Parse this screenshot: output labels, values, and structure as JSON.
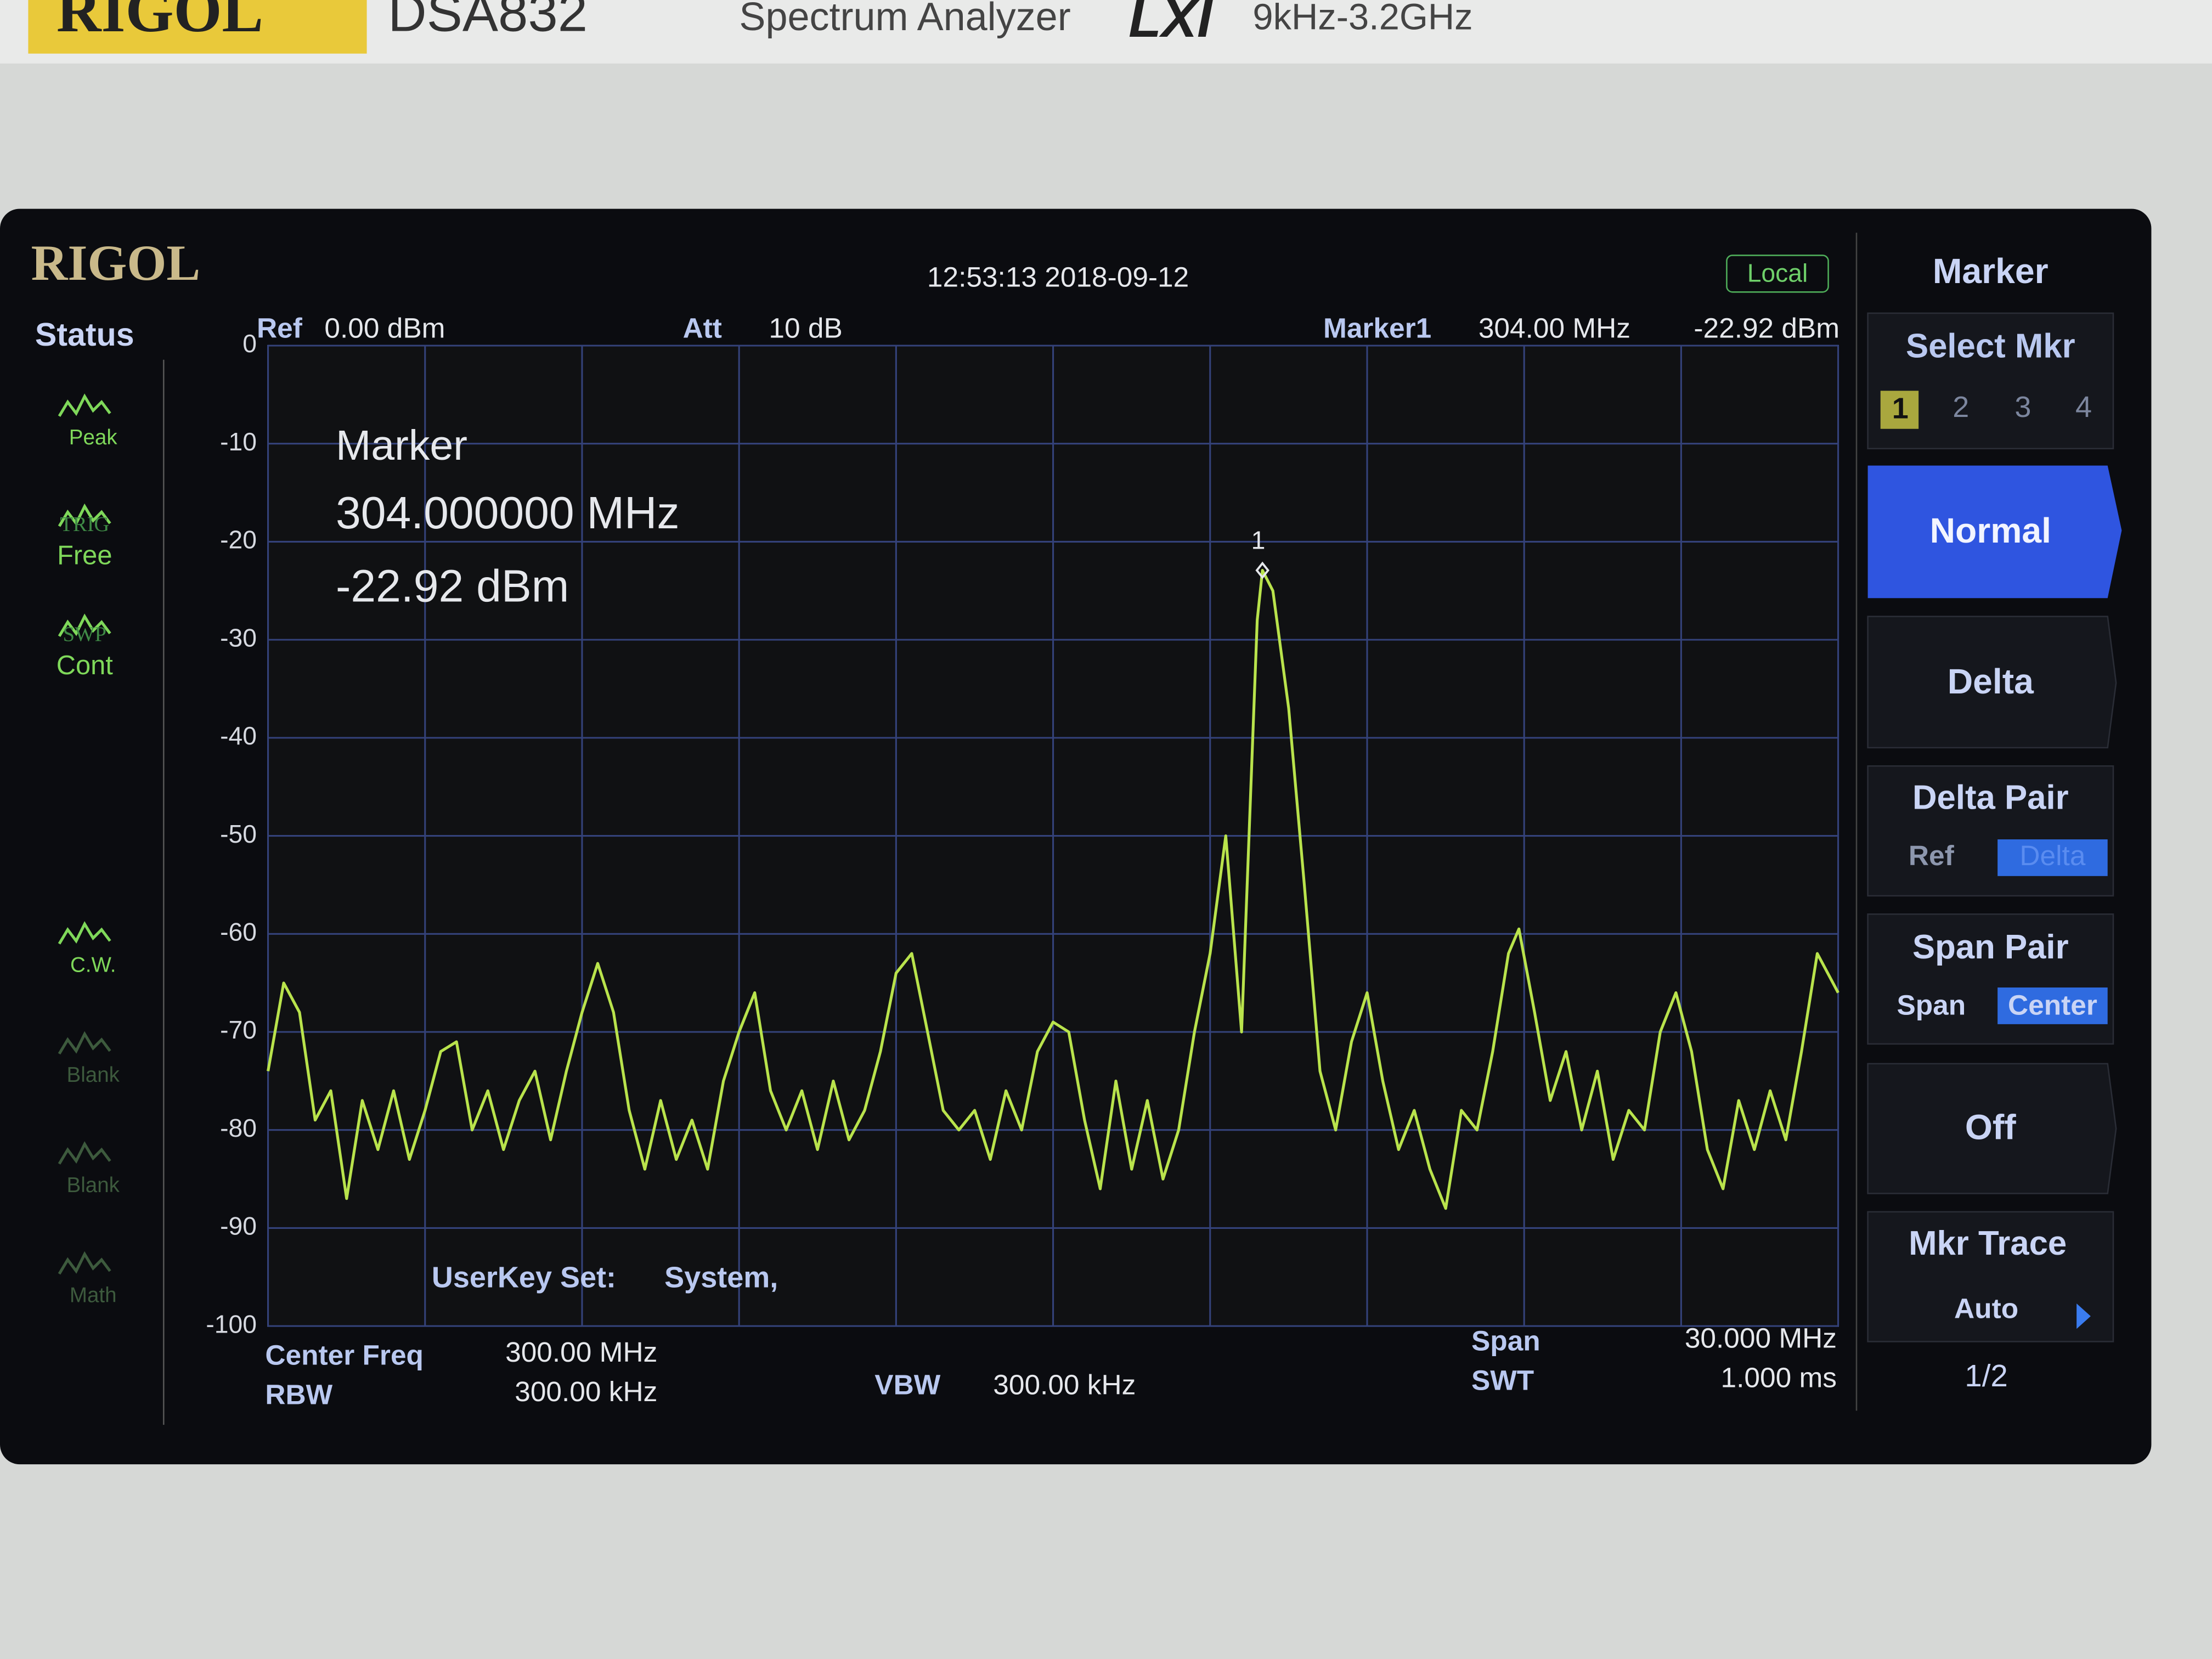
{
  "device": {
    "brand": "RIGOL",
    "model": "DSA832",
    "desc": "Spectrum Analyzer",
    "lxi": "LXI",
    "range": "9kHz-3.2GHz"
  },
  "screen": {
    "logo": "RIGOL",
    "time": "12:53:13 2018-09-12",
    "mode": "Local",
    "status": {
      "title": "Status",
      "items": [
        {
          "bottom": "Peak"
        },
        {
          "top": "TRIG",
          "bottom": "Free"
        },
        {
          "top": "SWP",
          "bottom": "Cont"
        },
        {
          "bottom": "C.W."
        },
        {
          "bottom": "Blank"
        },
        {
          "bottom": "Blank"
        },
        {
          "bottom": "Math"
        }
      ]
    },
    "header": {
      "ref_label": "Ref",
      "ref_value": "0.00 dBm",
      "att_label": "Att",
      "att_value": "10 dB",
      "marker_label": "Marker1",
      "marker_freq": "304.00 MHz",
      "marker_level": "-22.92 dBm"
    },
    "marker_box": {
      "title": "Marker",
      "freq": "304.000000 MHz",
      "level": "-22.92 dBm"
    },
    "userkey": {
      "label": "UserKey Set:",
      "value": "System,"
    },
    "footer": {
      "center_label": "Center Freq",
      "center_value": "300.00 MHz",
      "rbw_label": "RBW",
      "rbw_value": "300.00 kHz",
      "vbw_label": "VBW",
      "vbw_value": "300.00 kHz",
      "span_label": "Span",
      "span_value": "30.000 MHz",
      "swt_label": "SWT",
      "swt_value": "1.000 ms"
    },
    "menu": {
      "title": "Marker",
      "select": {
        "label": "Select Mkr",
        "options": [
          "1",
          "2",
          "3",
          "4"
        ]
      },
      "normal": "Normal",
      "delta": "Delta",
      "delta_pair": {
        "label": "Delta Pair",
        "options": [
          "Ref",
          "Delta"
        ]
      },
      "span_pair": {
        "label": "Span Pair",
        "options": [
          "Span",
          "Center"
        ]
      },
      "off": "Off",
      "mkr_trace": {
        "label": "Mkr Trace",
        "value": "Auto"
      },
      "page": "1/2"
    }
  },
  "chart_data": {
    "type": "line",
    "color": "#b9e34c",
    "grid": true,
    "ylim": [
      -100,
      0
    ],
    "yticks": [
      0,
      -10,
      -20,
      -30,
      -40,
      -50,
      -60,
      -70,
      -80,
      -90,
      -100
    ],
    "xlim": [
      285,
      315
    ],
    "xticks": [
      285,
      288,
      291,
      294,
      297,
      300,
      303,
      306,
      309,
      312,
      315
    ],
    "marker": {
      "label": "1",
      "x": 304,
      "y": -22.92
    },
    "x": [
      285.0,
      285.3,
      285.6,
      285.9,
      286.2,
      286.5,
      286.8,
      287.1,
      287.4,
      287.7,
      288.0,
      288.3,
      288.6,
      288.9,
      289.2,
      289.5,
      289.8,
      290.1,
      290.4,
      290.7,
      291.0,
      291.3,
      291.6,
      291.9,
      292.2,
      292.5,
      292.8,
      293.1,
      293.4,
      293.7,
      294.0,
      294.3,
      294.6,
      294.9,
      295.2,
      295.5,
      295.8,
      296.1,
      296.4,
      296.7,
      297.0,
      297.3,
      297.6,
      297.9,
      298.2,
      298.5,
      298.8,
      299.1,
      299.4,
      299.7,
      300.0,
      300.3,
      300.6,
      300.9,
      301.2,
      301.5,
      301.8,
      302.1,
      302.4,
      302.7,
      303.0,
      303.3,
      303.6,
      303.9,
      304.0,
      304.2,
      304.5,
      304.8,
      305.1,
      305.4,
      305.7,
      306.0,
      306.3,
      306.6,
      306.9,
      307.2,
      307.5,
      307.8,
      308.1,
      308.4,
      308.7,
      308.9,
      309.2,
      309.5,
      309.8,
      310.1,
      310.4,
      310.7,
      311.0,
      311.3,
      311.6,
      311.9,
      312.2,
      312.5,
      312.8,
      313.1,
      313.4,
      313.7,
      314.0,
      314.3,
      314.6,
      315.0
    ],
    "values": [
      -74,
      -65,
      -68,
      -79,
      -76,
      -87,
      -77,
      -82,
      -76,
      -83,
      -78,
      -72,
      -71,
      -80,
      -76,
      -82,
      -77,
      -74,
      -81,
      -74,
      -68,
      -63,
      -68,
      -78,
      -84,
      -77,
      -83,
      -79,
      -84,
      -75,
      -70,
      -66,
      -76,
      -80,
      -76,
      -82,
      -75,
      -81,
      -78,
      -72,
      -64,
      -62,
      -70,
      -78,
      -80,
      -78,
      -83,
      -76,
      -80,
      -72,
      -69,
      -70,
      -79,
      -86,
      -75,
      -84,
      -77,
      -85,
      -80,
      -70,
      -62,
      -50,
      -70,
      -28,
      -22.92,
      -25,
      -37,
      -55,
      -74,
      -80,
      -71,
      -66,
      -75,
      -82,
      -78,
      -84,
      -88,
      -78,
      -80,
      -72,
      -62,
      -59.5,
      -68,
      -77,
      -72,
      -80,
      -74,
      -83,
      -78,
      -80,
      -70,
      -66,
      -72,
      -82,
      -86,
      -77,
      -82,
      -76,
      -81,
      -72,
      -62,
      -66
    ]
  }
}
